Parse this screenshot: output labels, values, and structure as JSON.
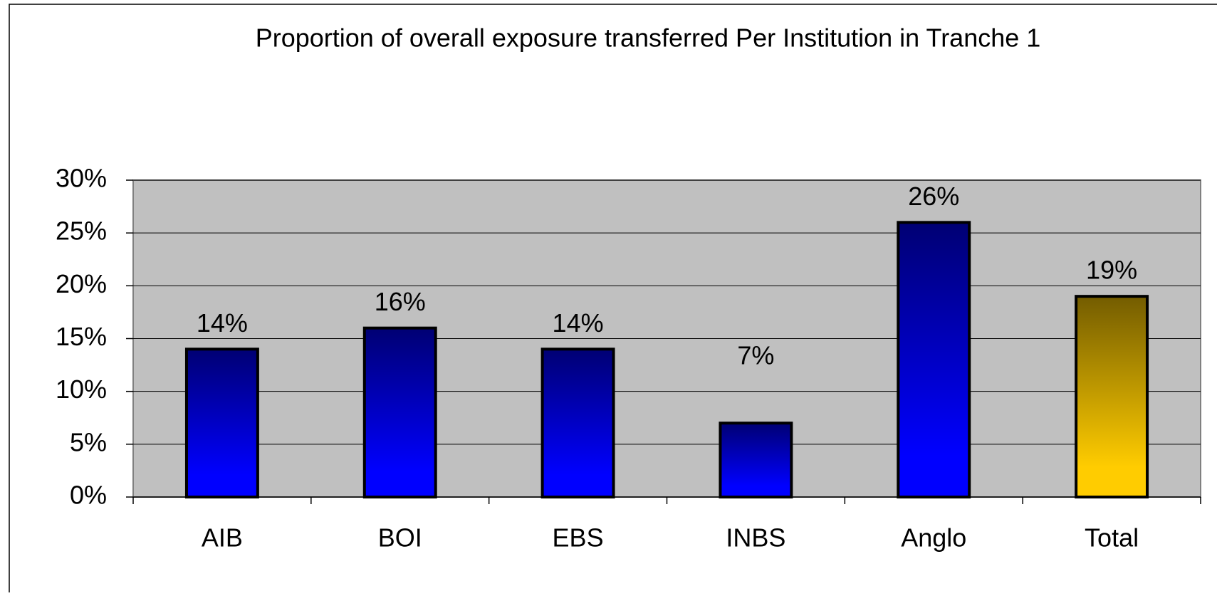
{
  "chart_data": {
    "type": "bar",
    "title": "Proportion of overall exposure transferred Per Institution in Tranche 1",
    "categories": [
      "AIB",
      "BOI",
      "EBS",
      "INBS",
      "Anglo",
      "Total"
    ],
    "values": [
      14,
      16,
      14,
      7,
      26,
      19
    ],
    "value_labels": [
      "14%",
      "16%",
      "14%",
      "7%",
      "26%",
      "19%"
    ],
    "colors": [
      "#0000ff",
      "#0000ff",
      "#0000ff",
      "#0000ff",
      "#0000ff",
      "#ffcc00"
    ],
    "ylim": [
      0,
      30
    ],
    "yticks": [
      {
        "value": 0,
        "label": "0%"
      },
      {
        "value": 5,
        "label": "5%"
      },
      {
        "value": 10,
        "label": "10%"
      },
      {
        "value": 15,
        "label": "15%"
      },
      {
        "value": 20,
        "label": "20%"
      },
      {
        "value": 25,
        "label": "25%"
      },
      {
        "value": 30,
        "label": "30%"
      }
    ],
    "grid": true
  }
}
